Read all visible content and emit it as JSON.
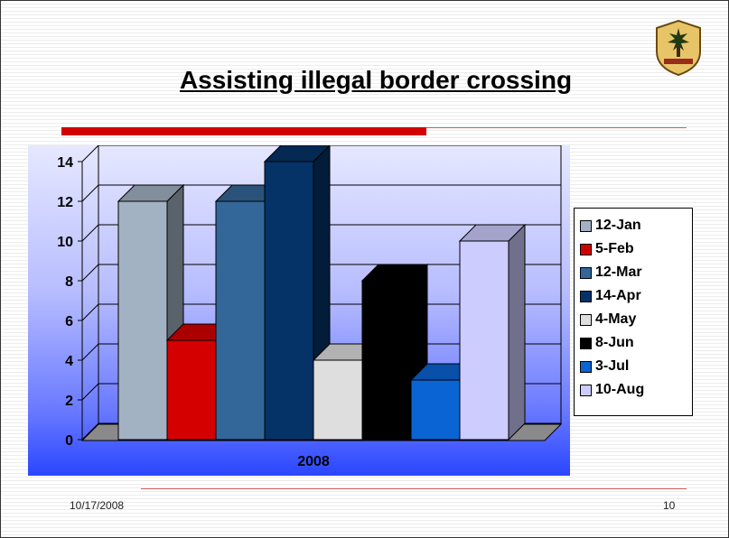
{
  "slide": {
    "title": "Assisting illegal border crossing",
    "footer_date": "10/17/2008",
    "page_number": "10"
  },
  "colors": {
    "title_bar": "#d40000",
    "rule": "#d46060"
  },
  "chart_data": {
    "type": "bar",
    "categories": [
      "2008"
    ],
    "series": [
      {
        "name": "12-Jan",
        "values": [
          12
        ],
        "color": "#a3b2c2"
      },
      {
        "name": "5-Feb",
        "values": [
          5
        ],
        "color": "#d40000"
      },
      {
        "name": "12-Mar",
        "values": [
          12
        ],
        "color": "#346799"
      },
      {
        "name": "14-Apr",
        "values": [
          14
        ],
        "color": "#053368"
      },
      {
        "name": "4-May",
        "values": [
          4
        ],
        "color": "#dedede"
      },
      {
        "name": "8-Jun",
        "values": [
          8
        ],
        "color": "#000000"
      },
      {
        "name": "3-Jul",
        "values": [
          3
        ],
        "color": "#0a64d4"
      },
      {
        "name": "10-Aug",
        "values": [
          10
        ],
        "color": "#ccccff"
      }
    ],
    "xlabel": "2008",
    "ylabel": "",
    "ylim": [
      0,
      14
    ],
    "y_ticks": [
      "0",
      "2",
      "4",
      "6",
      "8",
      "10",
      "12",
      "14"
    ],
    "grid": true,
    "three_d": true,
    "legend_position": "right"
  }
}
